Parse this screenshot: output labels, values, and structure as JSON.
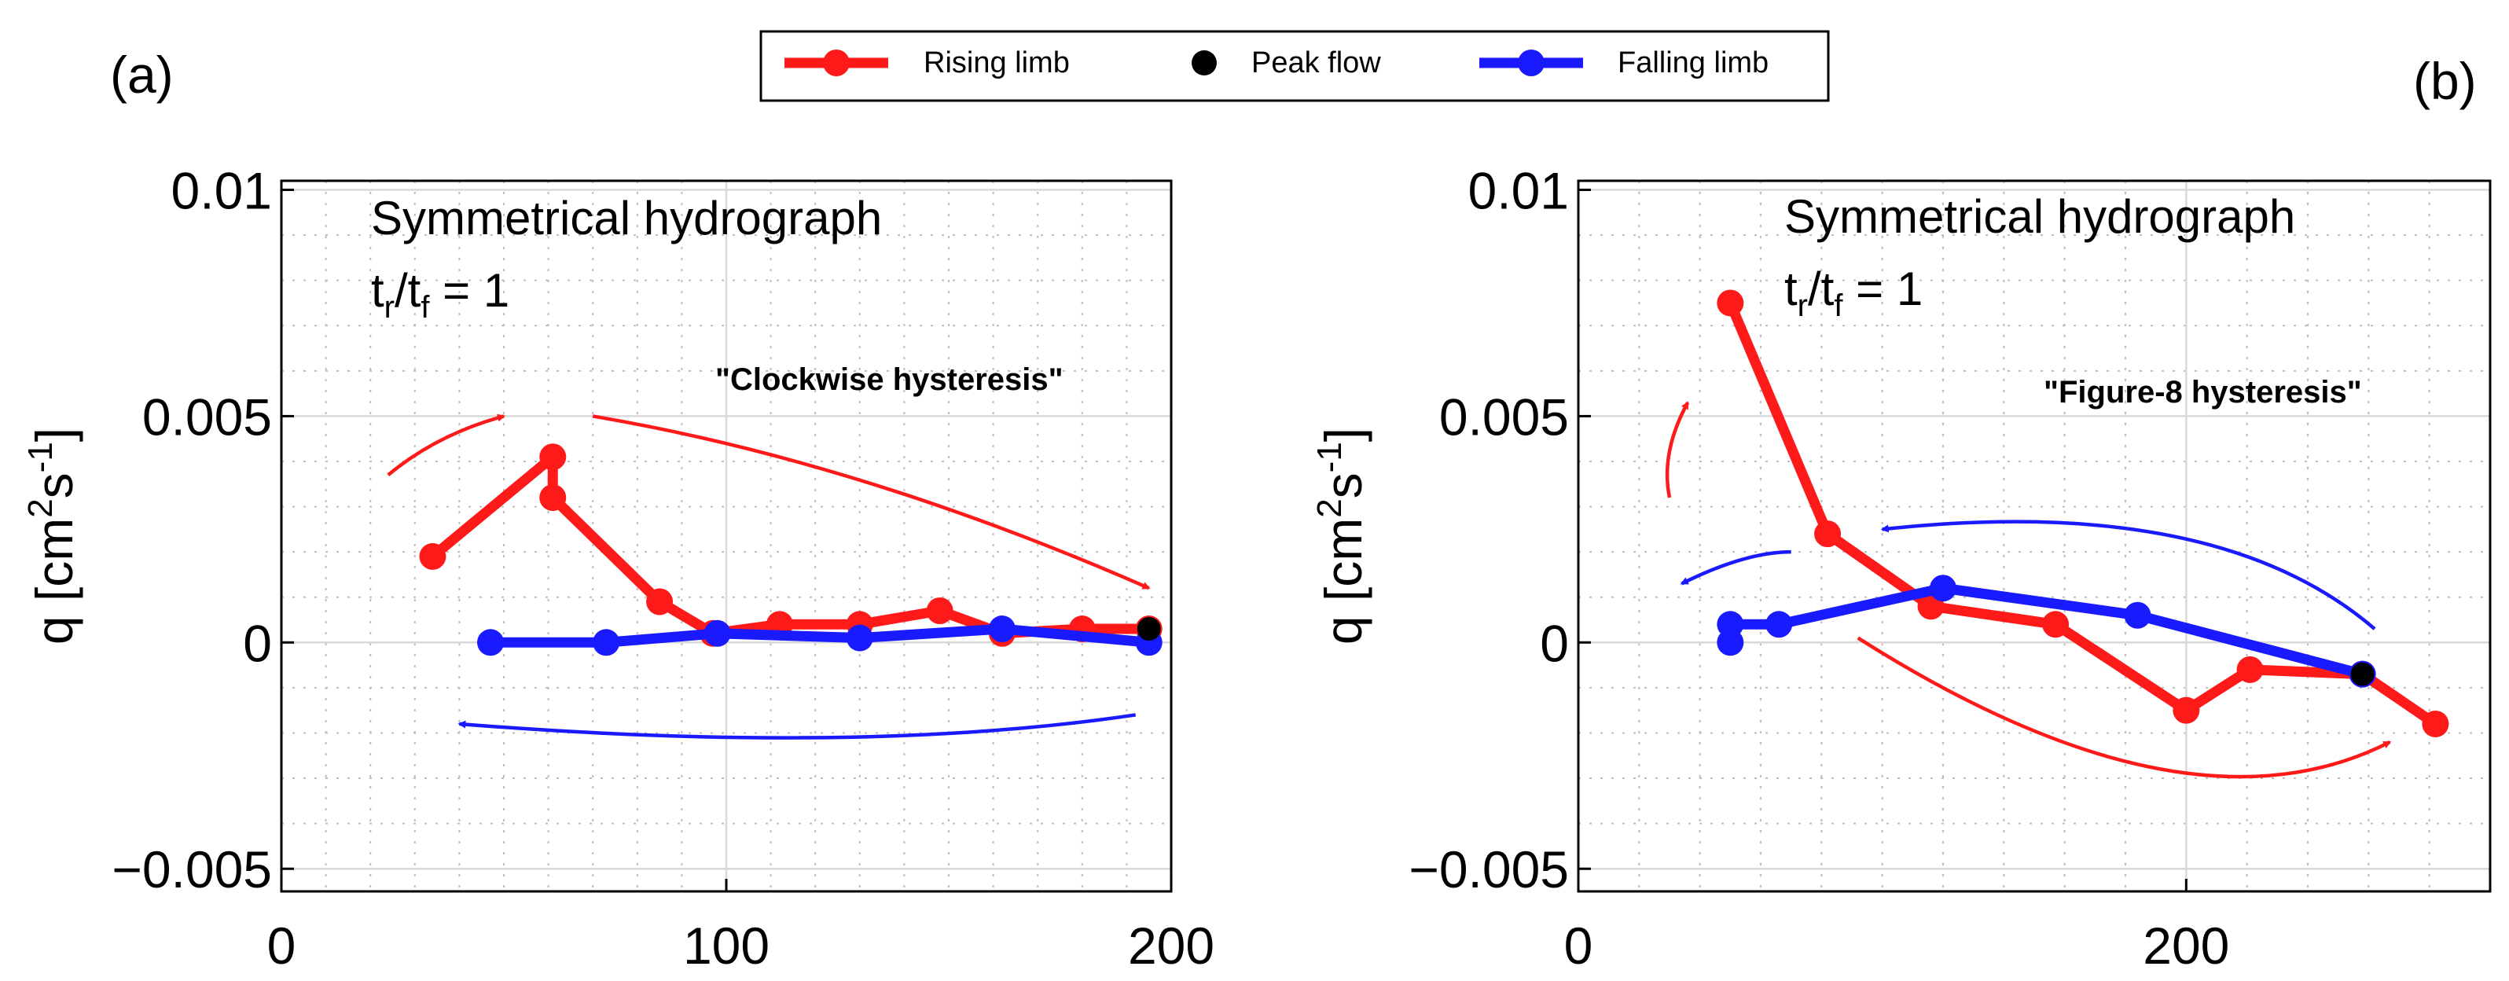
{
  "legend": {
    "entries": [
      {
        "label": "Rising limb",
        "color": "#ff1a1a",
        "marker": "line-dot"
      },
      {
        "label": "Peak flow",
        "color": "#000000",
        "marker": "dot"
      },
      {
        "label": "Falling limb",
        "color": "#1a1aff",
        "marker": "line-dot"
      }
    ]
  },
  "chart_data": [
    {
      "type": "line",
      "panel_label": "(a)",
      "title": "Symmetrical hydrograph",
      "ratio_label": {
        "base": "t",
        "sub1": "r",
        "slash": "/t",
        "sub2": "f",
        "rest": " = 1"
      },
      "annotation": "\"Clockwise hysteresis\"",
      "ylabel": {
        "a": "q [cm",
        "sup1": "2",
        "b": "s",
        "sup2": "-1",
        "c": "]"
      },
      "xlim": [
        0,
        200
      ],
      "ylim": [
        -0.0055,
        0.0102
      ],
      "xticks": [
        0,
        100,
        200
      ],
      "xtick_labels": [
        "0",
        "100",
        "200"
      ],
      "yticks": [
        -0.005,
        0,
        0.005,
        0.01
      ],
      "ytick_labels": [
        "−0.005",
        "0",
        "0.005",
        "0.01"
      ],
      "xminor": [
        10,
        20,
        30,
        40,
        50,
        60,
        70,
        80,
        90,
        110,
        120,
        130,
        140,
        150,
        160,
        170,
        180,
        190
      ],
      "yminor": [
        -0.004,
        -0.003,
        -0.002,
        -0.001,
        0.001,
        0.002,
        0.003,
        0.004,
        0.006,
        0.007,
        0.008,
        0.009
      ],
      "series": [
        {
          "name": "Rising limb",
          "color": "#ff1a1a",
          "x": [
            34,
            61,
            61,
            85,
            97,
            112,
            130,
            148,
            162,
            180,
            195
          ],
          "y": [
            0.0019,
            0.0041,
            0.0032,
            0.0009,
            0.0002,
            0.0004,
            0.0004,
            0.0007,
            0.0002,
            0.0003,
            0.0003
          ]
        },
        {
          "name": "Falling limb",
          "color": "#1a1aff",
          "x": [
            47,
            73,
            98,
            130,
            162,
            195
          ],
          "y": [
            0.0,
            0.0,
            0.0002,
            0.0001,
            0.0003,
            0.0
          ]
        },
        {
          "name": "Peak flow",
          "color": "#000000",
          "x": [
            195
          ],
          "y": [
            0.0003
          ]
        }
      ],
      "arrows": [
        {
          "color": "#ff1a1a",
          "points": [
            [
              24,
              0.0037
            ],
            [
              35,
              0.0046
            ],
            [
              50,
              0.005
            ]
          ]
        },
        {
          "color": "#ff1a1a",
          "points": [
            [
              70,
              0.005
            ],
            [
              130,
              0.004
            ],
            [
              195,
              0.0012
            ]
          ]
        },
        {
          "color": "#1a1aff",
          "points": [
            [
              192,
              -0.0016
            ],
            [
              130,
              -0.0025
            ],
            [
              40,
              -0.0018
            ]
          ]
        }
      ]
    },
    {
      "type": "line",
      "panel_label": "(b)",
      "title": "Symmetrical hydrograph",
      "ratio_label": {
        "base": "t",
        "sub1": "r",
        "slash": "/t",
        "sub2": "f",
        "rest": " = 1"
      },
      "annotation": "\"Figure-8 hysteresis\"",
      "ylabel": {
        "a": "q [cm",
        "sup1": "2",
        "b": "s",
        "sup2": "-1",
        "c": "]"
      },
      "xlim": [
        0,
        300
      ],
      "ylim": [
        -0.0055,
        0.0102
      ],
      "xticks": [
        0,
        200
      ],
      "xtick_labels": [
        "0",
        "200"
      ],
      "yticks": [
        -0.005,
        0,
        0.005,
        0.01
      ],
      "ytick_labels": [
        "−0.005",
        "0",
        "0.005",
        "0.01"
      ],
      "xminor": [
        20,
        40,
        60,
        80,
        100,
        120,
        140,
        160,
        180,
        220,
        240,
        260,
        280
      ],
      "yminor": [
        -0.004,
        -0.003,
        -0.002,
        -0.001,
        0.001,
        0.002,
        0.003,
        0.004,
        0.006,
        0.007,
        0.008,
        0.009
      ],
      "series": [
        {
          "name": "Rising limb",
          "color": "#ff1a1a",
          "x": [
            50,
            82,
            116,
            157,
            200,
            221,
            258,
            282
          ],
          "y": [
            0.0075,
            0.0024,
            0.0008,
            0.0004,
            -0.0015,
            -0.0006,
            -0.0007,
            -0.0018
          ]
        },
        {
          "name": "Falling limb",
          "color": "#1a1aff",
          "x": [
            50,
            50,
            66,
            120,
            184,
            258
          ],
          "y": [
            0.0,
            0.0004,
            0.0004,
            0.0012,
            0.0006,
            -0.0007
          ]
        },
        {
          "name": "Peak flow",
          "color": "#000000",
          "x": [
            258
          ],
          "y": [
            -0.0007
          ]
        }
      ],
      "arrows": [
        {
          "color": "#ff1a1a",
          "points": [
            [
              30,
              0.0032
            ],
            [
              27,
              0.0042
            ],
            [
              36,
              0.0053
            ]
          ]
        },
        {
          "color": "#ff1a1a",
          "points": [
            [
              92,
              0.0001
            ],
            [
              200,
              -0.0045
            ],
            [
              267,
              -0.0022
            ]
          ]
        },
        {
          "color": "#1a1aff",
          "points": [
            [
              262,
              0.0003
            ],
            [
              210,
              0.0033
            ],
            [
              100,
              0.0025
            ]
          ]
        },
        {
          "color": "#1a1aff",
          "points": [
            [
              70,
              0.002
            ],
            [
              55,
              0.002
            ],
            [
              34,
              0.0013
            ]
          ]
        }
      ]
    }
  ]
}
